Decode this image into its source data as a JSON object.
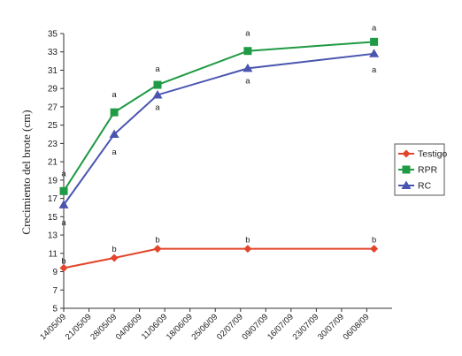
{
  "chart_data": {
    "type": "line",
    "title": "",
    "xlabel": "",
    "ylabel": "Crecimiento del brote (cm)",
    "ylim": [
      5,
      35
    ],
    "yticks": [
      5,
      7,
      9,
      11,
      13,
      15,
      17,
      19,
      21,
      23,
      25,
      27,
      29,
      31,
      33,
      35
    ],
    "xticks": [
      "14/05/09",
      "21/05/09",
      "28/05/09",
      "04/06/09",
      "11/06/09",
      "18/06/09",
      "25/06/09",
      "02/07/09",
      "09/07/09",
      "16/07/09",
      "23/07/09",
      "30/07/09",
      "06/08/09"
    ],
    "xlim": [
      "14/05/09",
      "13/08/09"
    ],
    "grid": false,
    "legend_position": "right",
    "series": [
      {
        "name": "Testigo",
        "color": "#e2452b",
        "marker": "diamond",
        "x": [
          "14/05/09",
          "28/05/09",
          "09/06/09",
          "04/07/09",
          "08/08/09"
        ],
        "y": [
          9.4,
          10.5,
          11.5,
          11.5,
          11.5
        ],
        "labels": [
          "b",
          "b",
          "b",
          "b",
          "b"
        ]
      },
      {
        "name": "RPR",
        "color": "#1f9a45",
        "marker": "square",
        "x": [
          "14/05/09",
          "28/05/09",
          "09/06/09",
          "04/07/09",
          "08/08/09"
        ],
        "y": [
          17.8,
          26.4,
          29.4,
          33.1,
          34.1
        ],
        "labels": [
          "a",
          "a",
          "a",
          "a",
          "a"
        ]
      },
      {
        "name": "RC",
        "color": "#4a55b0",
        "marker": "triangle",
        "x": [
          "14/05/09",
          "28/05/09",
          "09/06/09",
          "04/07/09",
          "08/08/09"
        ],
        "y": [
          16.3,
          24.0,
          28.3,
          31.2,
          32.8
        ],
        "labels": [
          "a",
          "a",
          "a",
          "a",
          "a"
        ]
      }
    ]
  }
}
